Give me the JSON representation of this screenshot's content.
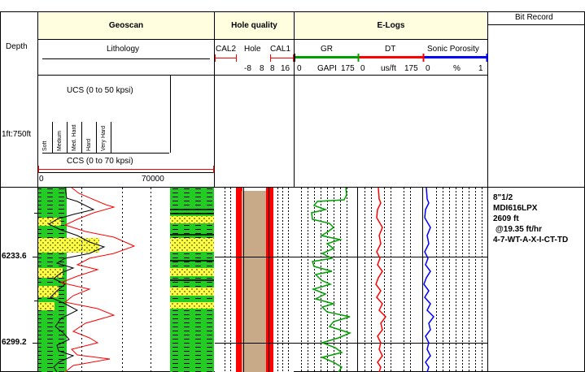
{
  "header": {
    "depth_label": "Depth",
    "scale_label": "1ft:750ft",
    "geoscan_title": "Geoscan",
    "lithology_label": "Lithology",
    "hole_quality_title": "Hole quality",
    "elogs_title": "E-Logs",
    "bit_record_title": "Bit Record"
  },
  "hole_quality": {
    "curves": [
      "CAL2",
      "Hole",
      "CAL1"
    ],
    "scale": [
      "-8",
      "8",
      "8",
      "16"
    ]
  },
  "elogs": {
    "curves": [
      "GR",
      "DT",
      "Sonic Porosity"
    ],
    "gr_scale": [
      "0",
      "GAPI",
      "175"
    ],
    "dt_scale": [
      "0",
      "us/ft",
      "175"
    ],
    "por_scale": [
      "0",
      "%",
      "1"
    ]
  },
  "strength": {
    "ucs_label": "UCS (0 to 50 kpsi)",
    "ccs_label": "CCS (0 to 70 kpsi)",
    "ccs_min": "0",
    "ccs_max": "70000",
    "categories": [
      "Soft",
      "Medium",
      "Med. Hard",
      "Hard",
      "Very Hard"
    ]
  },
  "depth_markers": [
    "6233.6",
    "6299.2"
  ],
  "bit_record": {
    "lines": [
      "8\"1/2",
      "MDI616LPX",
      "2609 ft",
      "@19.35 ft/hr",
      "4-7-WT-A-X-I-CT-TD"
    ]
  },
  "colors": {
    "header_bg": "#ffffe0",
    "cal_red": "#ff0000",
    "gr_green": "#00a000",
    "dt_red": "#ff0000",
    "por_blue": "#0000ff",
    "hole_tan": "#c8aa88",
    "shale_green": "#22cc22",
    "sand_yellow": "#ffff44"
  }
}
